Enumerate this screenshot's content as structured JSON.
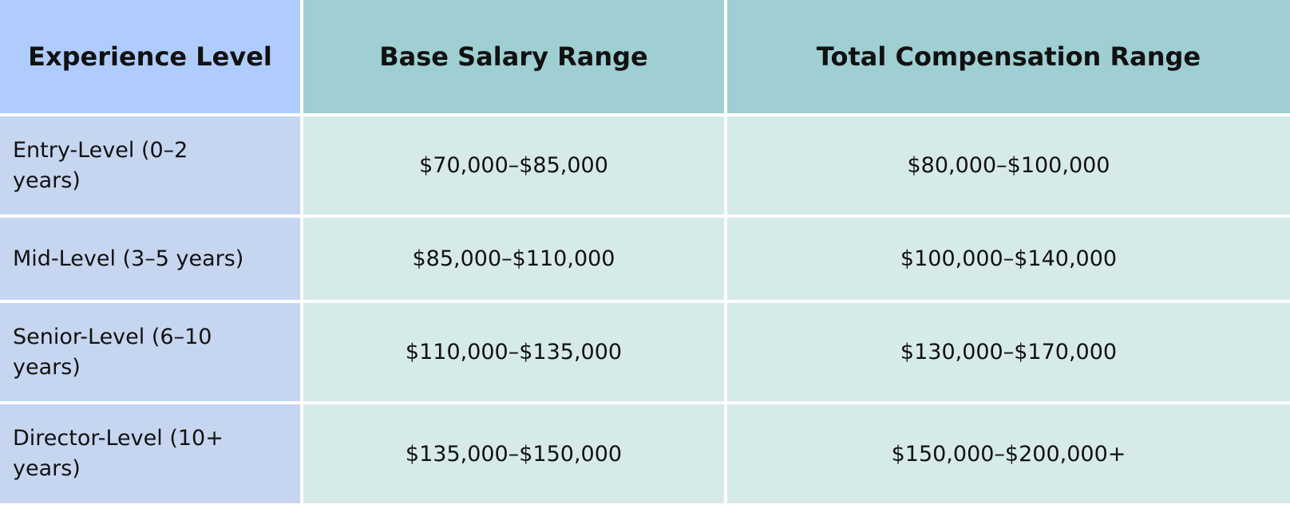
{
  "table": {
    "header": [
      "Experience Level",
      "Base Salary Range",
      "Total Compensation Range"
    ],
    "rows": [
      [
        "Entry-Level (0–2 years)",
        "$70,000–$85,000",
        "$80,000–$100,000"
      ],
      [
        "Mid-Level (3–5 years)",
        "$85,000–$110,000",
        "$100,000–$140,000"
      ],
      [
        "Senior-Level (6–10 years)",
        "$110,000–$135,000",
        "$130,000–$170,000"
      ],
      [
        "Director-Level (10+ years)",
        "$135,000–$150,000",
        "$150,000–$200,000+"
      ]
    ]
  }
}
